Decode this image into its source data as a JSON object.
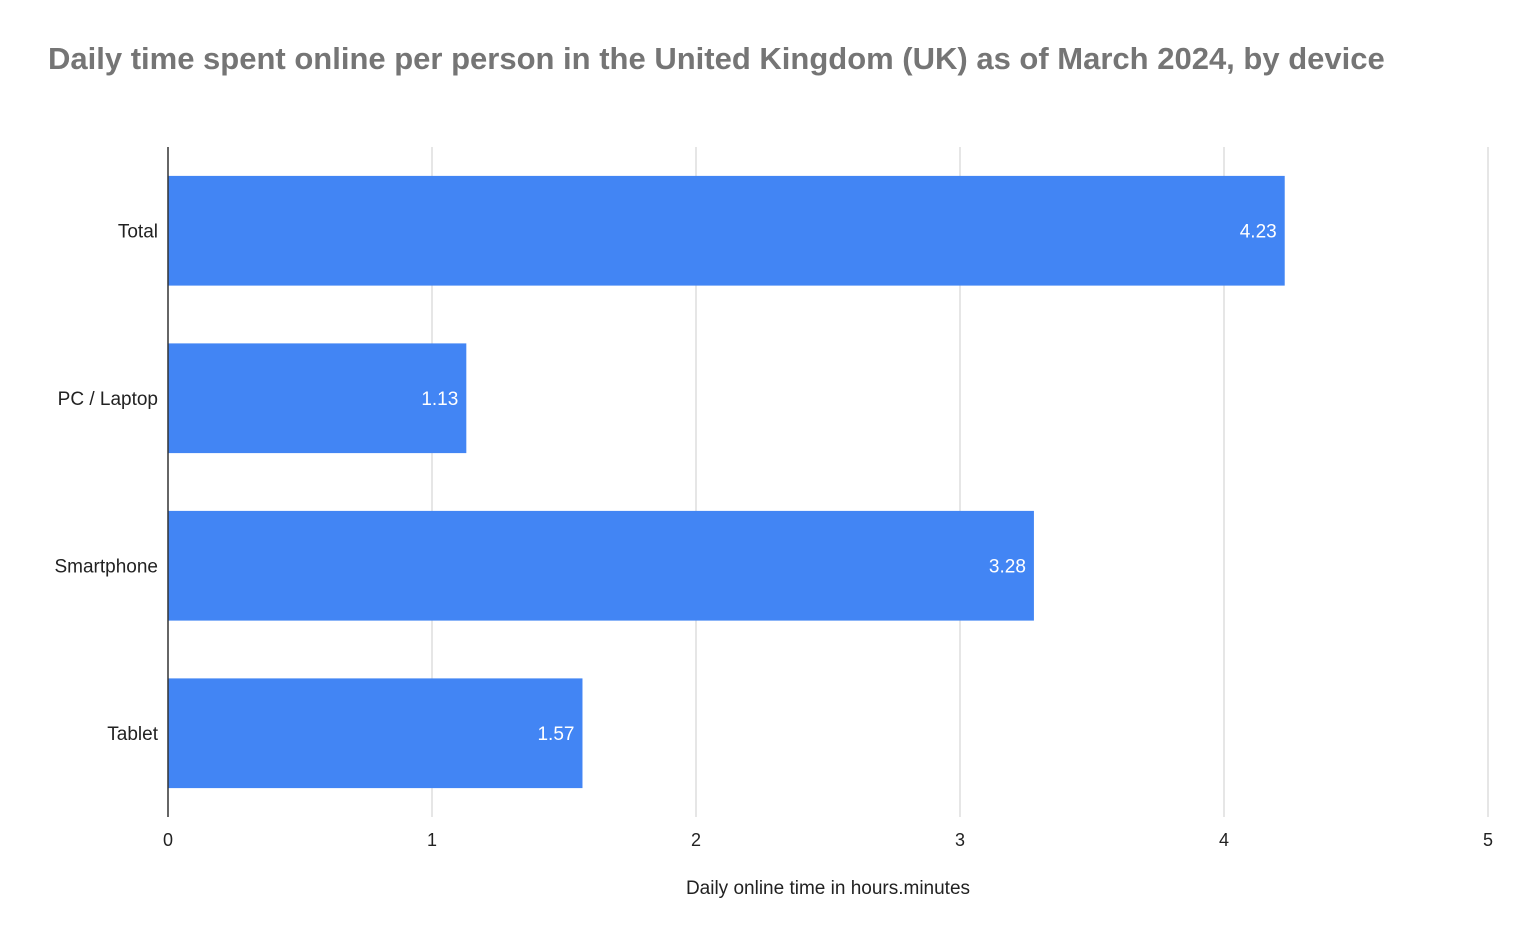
{
  "chart_data": {
    "type": "bar",
    "orientation": "horizontal",
    "title": "Daily time spent online per person in the United Kingdom (UK) as of March 2024, by device",
    "xlabel": "Daily online time in hours.minutes",
    "ylabel": "",
    "categories": [
      "Total",
      "PC / Laptop",
      "Smartphone",
      "Tablet"
    ],
    "values": [
      4.23,
      1.13,
      3.28,
      1.57
    ],
    "value_labels": [
      "4.23",
      "1.13",
      "3.28",
      "1.57"
    ],
    "xlim": [
      0,
      5
    ],
    "x_ticks": [
      0,
      1,
      2,
      3,
      4,
      5
    ],
    "grid": true,
    "legend": "none",
    "bar_color": "#4285f4"
  }
}
